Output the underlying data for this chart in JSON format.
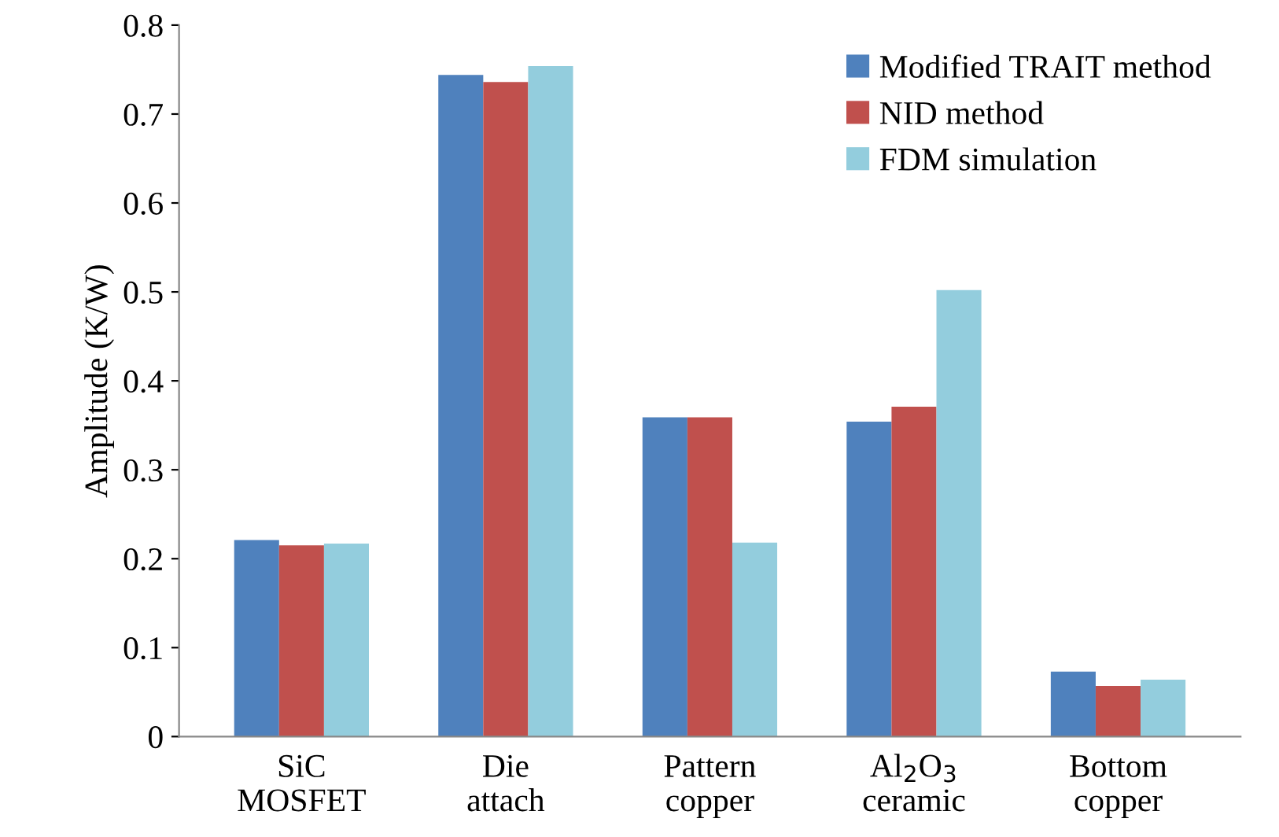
{
  "chart_data": {
    "type": "bar",
    "ylabel": "Amplitude (K/W)",
    "categories": [
      "SiC\nMOSFET",
      "Die\nattach",
      "Pattern\ncopper",
      "Al$_{2}$O$_{3}$\nceramic",
      "Bottom\ncopper"
    ],
    "series": [
      {
        "name": "Modified TRAIT method",
        "color": "#4f81bd",
        "values": [
          0.221,
          0.744,
          0.359,
          0.354,
          0.073
        ]
      },
      {
        "name": "NID method",
        "color": "#c0504d",
        "values": [
          0.215,
          0.736,
          0.359,
          0.371,
          0.057
        ]
      },
      {
        "name": "FDM simulation",
        "color": "#93cddd",
        "values": [
          0.217,
          0.754,
          0.218,
          0.502,
          0.064
        ]
      }
    ],
    "ylim": [
      0,
      0.8
    ],
    "yticks": [
      0,
      0.1,
      0.2,
      0.3,
      0.4,
      0.5,
      0.6,
      0.7,
      0.8
    ],
    "grid": false,
    "legend": "top right"
  }
}
